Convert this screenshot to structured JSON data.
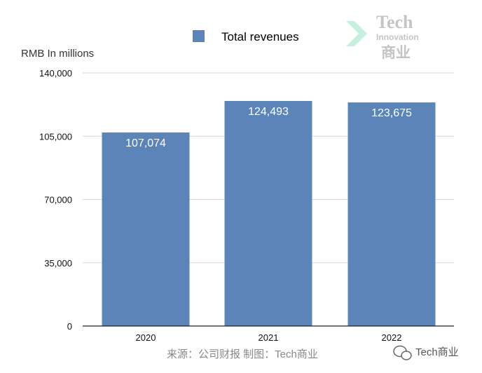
{
  "chart_data": {
    "type": "bar",
    "categories": [
      "2020",
      "2021",
      "2022"
    ],
    "series": [
      {
        "name": "Total revenues",
        "values": [
          107074,
          124493,
          123675
        ]
      }
    ],
    "data_labels": [
      "107,074",
      "124,493",
      "123,675"
    ],
    "ylabel": "RMB In millions",
    "ylim": [
      0,
      140000
    ],
    "yticks": [
      0,
      35000,
      70000,
      105000,
      140000
    ],
    "ytick_labels": [
      "0",
      "35,000",
      "70,000",
      "105,000",
      "140,000"
    ],
    "grid": true,
    "legend_position": "top-center"
  },
  "colors": {
    "bar": "#5b84b8"
  },
  "source_note": "来源：公司财报 制图：Tech商业",
  "watermark": {
    "line1": "Tech",
    "line2": "Innovation",
    "line3": "商业"
  },
  "wechat_account": "Tech商业",
  "icons": {
    "wechat": "wechat-icon",
    "logo": "tech-innovation-logo"
  }
}
